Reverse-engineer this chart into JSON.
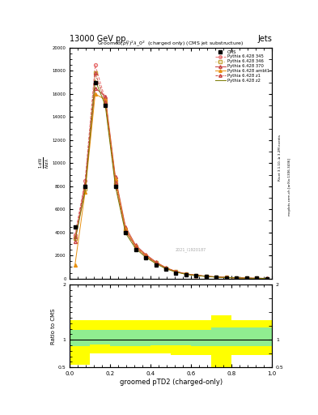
{
  "title_top_left": "13000 GeV pp",
  "title_top_right": "Jets",
  "plot_title": "Groomed$(p_T^D)^2\\lambda\\_0^2$  (charged only) (CMS jet substructure)",
  "xlabel": "groomed pTD2 (charged-only)",
  "ylabel_main": "$\\frac{1}{N}\\frac{dN}{d\\lambda}$",
  "ylabel_ratio": "Ratio to CMS",
  "right_label_top": "Rivet 3.1.10, ≥ 3.2M events",
  "right_label_bot": "mcplots.cern.ch [arXiv:1306.3436]",
  "watermark": "2021_I1920187",
  "cms_x": [
    0.025,
    0.075,
    0.125,
    0.175,
    0.225,
    0.275,
    0.325,
    0.375,
    0.425,
    0.475,
    0.525,
    0.575,
    0.625,
    0.675,
    0.725,
    0.775,
    0.825,
    0.875,
    0.925,
    0.975
  ],
  "cms_y": [
    4500,
    8000,
    17000,
    15000,
    8000,
    4000,
    2500,
    1800,
    1200,
    800,
    500,
    350,
    250,
    180,
    120,
    80,
    50,
    30,
    20,
    10
  ],
  "p345_y": [
    3800,
    8500,
    18500,
    15500,
    8500,
    4200,
    2800,
    2000,
    1400,
    900,
    600,
    400,
    280,
    200,
    140,
    90,
    60,
    35,
    22,
    12
  ],
  "p346_y": [
    3500,
    7800,
    17800,
    15200,
    8200,
    4100,
    2700,
    1900,
    1350,
    880,
    580,
    380,
    270,
    190,
    130,
    85,
    55,
    32,
    20,
    11
  ],
  "p370_y": [
    3200,
    8000,
    16500,
    15800,
    8800,
    4500,
    2900,
    2100,
    1450,
    950,
    620,
    410,
    290,
    210,
    145,
    95,
    62,
    38,
    24,
    13
  ],
  "pambt1_y": [
    1200,
    7500,
    16000,
    15500,
    8600,
    4300,
    2800,
    2000,
    1400,
    920,
    600,
    395,
    280,
    200,
    138,
    90,
    58,
    35,
    22,
    12
  ],
  "pz1_y": [
    3600,
    8200,
    17800,
    15300,
    8300,
    4150,
    2750,
    1950,
    1380,
    890,
    590,
    390,
    275,
    195,
    133,
    87,
    57,
    33,
    21,
    11
  ],
  "pz2_y": [
    3300,
    7600,
    17200,
    15000,
    8000,
    3950,
    2600,
    1850,
    1300,
    850,
    560,
    370,
    260,
    185,
    125,
    82,
    53,
    31,
    19,
    10
  ],
  "color_cms": "#000000",
  "color_p345": "#e87070",
  "color_p346": "#c8a840",
  "color_p370": "#c84040",
  "color_pambt1": "#e89010",
  "color_pz1": "#c84040",
  "color_pz2": "#787800",
  "ylim_main": [
    0,
    20000
  ],
  "yticks_main": [
    0,
    2000,
    4000,
    6000,
    8000,
    10000,
    12000,
    14000,
    16000,
    18000,
    20000
  ],
  "ylim_ratio": [
    0.5,
    2.0
  ],
  "ratio_bins": [
    0.0,
    0.1,
    0.2,
    0.3,
    0.4,
    0.5,
    0.6,
    0.7,
    0.8,
    0.9,
    1.0
  ],
  "green_lo": [
    0.88,
    0.92,
    0.88,
    0.88,
    0.9,
    0.9,
    0.88,
    0.88,
    0.88,
    0.88
  ],
  "green_hi": [
    1.18,
    1.18,
    1.18,
    1.18,
    1.18,
    1.18,
    1.18,
    1.22,
    1.22,
    1.22
  ],
  "yellow_lo": [
    0.55,
    0.75,
    0.75,
    0.75,
    0.75,
    0.72,
    0.72,
    0.5,
    0.72,
    0.72
  ],
  "yellow_hi": [
    1.35,
    1.35,
    1.35,
    1.35,
    1.35,
    1.35,
    1.35,
    1.45,
    1.35,
    1.35
  ]
}
